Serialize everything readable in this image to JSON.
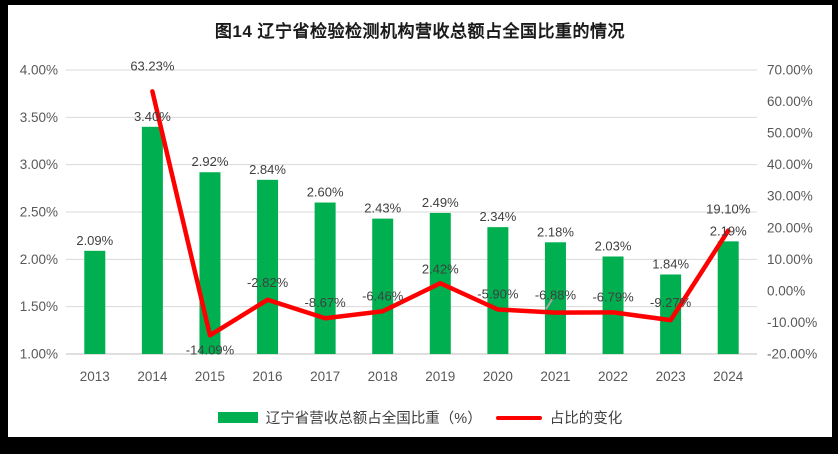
{
  "title": "图14 辽宁省检验检测机构营收总额占全国比重的情况",
  "colors": {
    "frame": "#000000",
    "background": "#ffffff",
    "bar": "#00B050",
    "line": "#FF0000",
    "gridline": "#D9D9D9",
    "axis_line": "#BFBFBF",
    "tick_label": "#595959",
    "data_label": "#404040",
    "stray_mark": "#A6A6A6"
  },
  "chart_data": {
    "type": "combo",
    "title": "图14 辽宁省检验检测机构营收总额占全国比重的情况",
    "categories": [
      "2013",
      "2014",
      "2015",
      "2016",
      "2017",
      "2018",
      "2019",
      "2020",
      "2021",
      "2022",
      "2023",
      "2024"
    ],
    "series": [
      {
        "name": "辽宁省营收总额占全国比重（%）",
        "chart_type": "bar",
        "axis": "left",
        "color": "#00B050",
        "values": [
          2.09,
          3.4,
          2.92,
          2.84,
          2.6,
          2.43,
          2.49,
          2.34,
          2.18,
          2.03,
          1.84,
          2.19
        ],
        "data_labels": [
          "2.09%",
          "3.40%",
          "2.92%",
          "2.84%",
          "2.60%",
          "2.43%",
          "2.49%",
          "2.34%",
          "2.18%",
          "2.03%",
          "1.84%",
          "2.19%"
        ]
      },
      {
        "name": "占比的变化",
        "chart_type": "line",
        "axis": "right",
        "color": "#FF0000",
        "values": [
          null,
          63.23,
          -14.09,
          -2.82,
          -8.67,
          -6.46,
          2.42,
          -5.9,
          -6.88,
          -6.79,
          -9.27,
          19.1
        ],
        "data_labels": [
          null,
          "63.23%",
          "-14.09%",
          "-2.82%",
          "-8.67%",
          "-6.46%",
          "2.42%",
          "-5.90%",
          "-6.88%",
          "-6.79%",
          "-9.27%",
          "19.10%"
        ],
        "label_dy": [
          null,
          -21,
          19,
          -13,
          -11,
          -11,
          -10,
          -11,
          -13,
          -11,
          -13,
          -17
        ]
      }
    ],
    "left_axis": {
      "min": 1.0,
      "max": 4.0,
      "step": 0.5,
      "ticks": [
        "1.00%",
        "1.50%",
        "2.00%",
        "2.50%",
        "3.00%",
        "3.50%",
        "4.00%"
      ]
    },
    "right_axis": {
      "min": -20,
      "max": 70,
      "step": 10,
      "ticks": [
        "-20.00%",
        "-10.00%",
        "0.00%",
        "10.00%",
        "20.00%",
        "30.00%",
        "40.00%",
        "50.00%",
        "60.00%",
        "70.00%"
      ]
    },
    "grid": true,
    "legend_position": "bottom"
  }
}
